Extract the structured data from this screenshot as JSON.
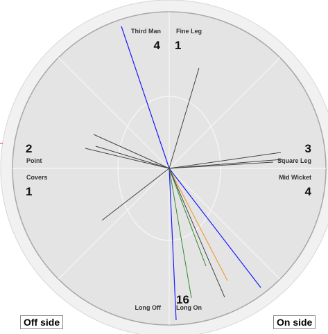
{
  "chart_data": {
    "type": "wagon-wheel",
    "zones": [
      {
        "name": "Third Man",
        "count": "4"
      },
      {
        "name": "Fine Leg",
        "count": "1"
      },
      {
        "name": "Square Leg",
        "count": "3"
      },
      {
        "name": "Mid Wicket",
        "count": "4"
      },
      {
        "name": "Long On",
        "count": "16"
      },
      {
        "name": "Long Off",
        "count": ""
      },
      {
        "name": "Covers",
        "count": "1"
      },
      {
        "name": "Point",
        "count": "2"
      }
    ],
    "sides": {
      "off": "Off side",
      "on": "On side"
    },
    "shot_colors": {
      "single": "#444444",
      "two": "#2e8b2e",
      "three": "#f0901e",
      "four": "#1a1aff"
    }
  }
}
